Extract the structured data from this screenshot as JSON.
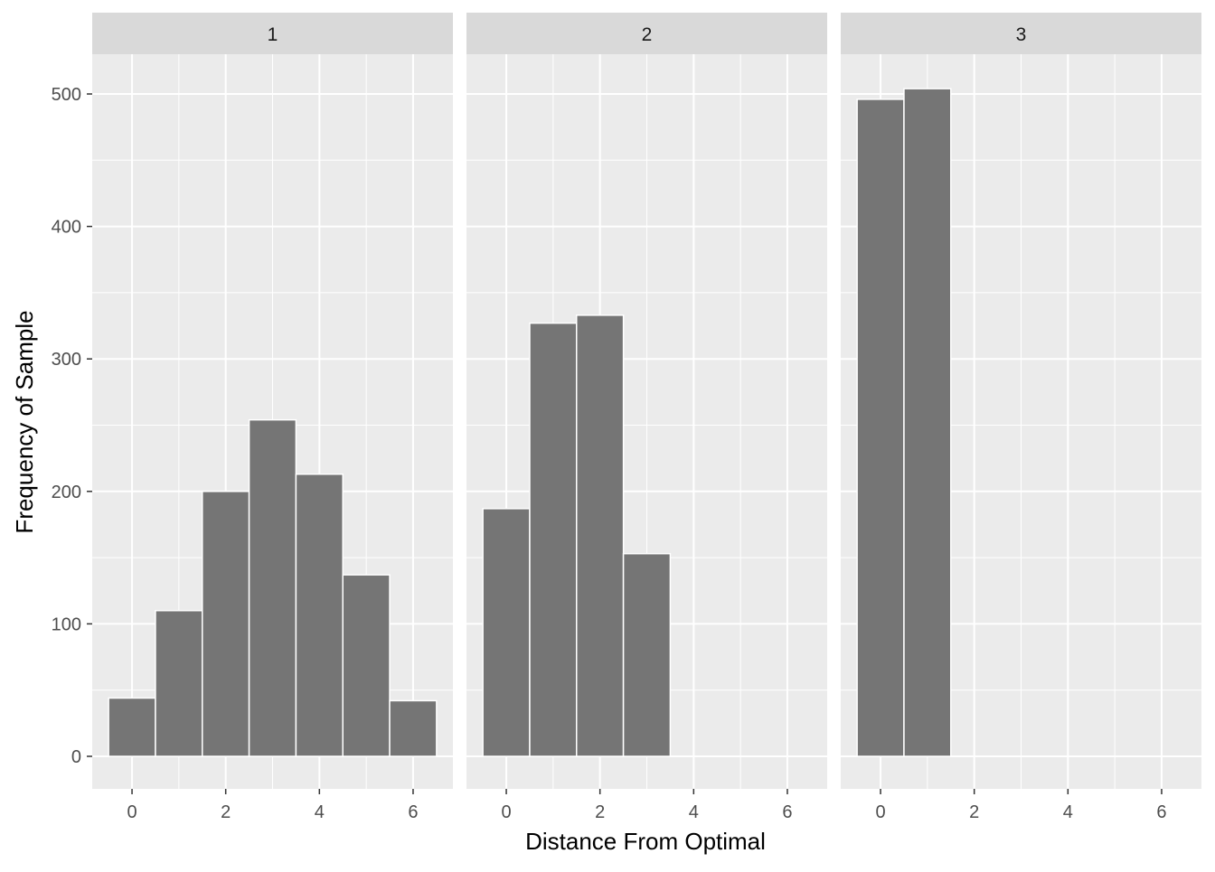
{
  "chart_data": {
    "type": "bar",
    "facet_labels": [
      "1",
      "2",
      "3"
    ],
    "xlabel": "Distance From Optimal",
    "ylabel": "Frequency of Sample",
    "xlim": [
      -0.5,
      6.5
    ],
    "ylim": [
      0,
      520
    ],
    "x_ticks": [
      0,
      2,
      4,
      6
    ],
    "y_ticks": [
      0,
      100,
      200,
      300,
      400,
      500
    ],
    "grid": true,
    "bar_color": "#757575",
    "panel_background": "#EBEBEB",
    "strip_background": "#D9D9D9",
    "series": [
      {
        "facet": "1",
        "x": [
          0,
          1,
          2,
          3,
          4,
          5,
          6
        ],
        "values": [
          44,
          110,
          200,
          254,
          213,
          137,
          42
        ]
      },
      {
        "facet": "2",
        "x": [
          0,
          1,
          2,
          3
        ],
        "values": [
          187,
          327,
          333,
          153
        ]
      },
      {
        "facet": "3",
        "x": [
          0,
          1
        ],
        "values": [
          496,
          504
        ]
      }
    ]
  }
}
